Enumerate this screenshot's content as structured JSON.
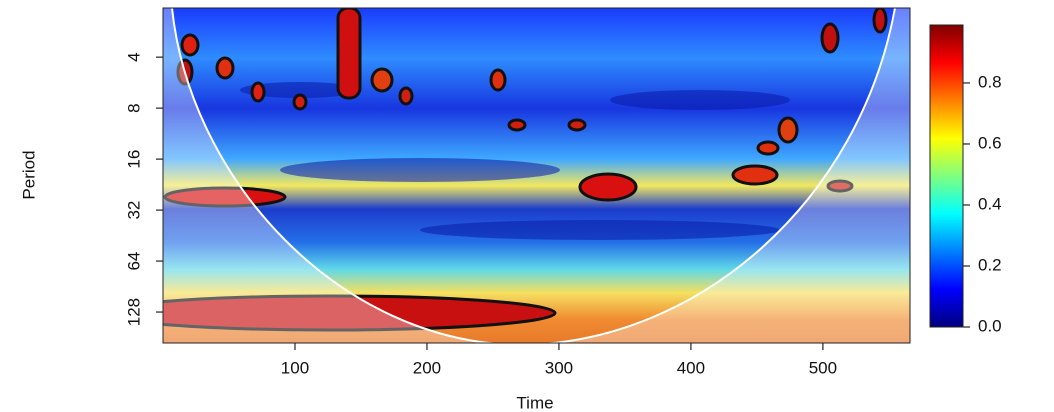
{
  "chart_data": {
    "type": "heatmap",
    "xlabel": "Time",
    "ylabel": "Period",
    "xlim": [
      0,
      566
    ],
    "xticks": [
      100,
      200,
      300,
      400,
      500
    ],
    "ylim": [
      2.05,
      195
    ],
    "yscale": "log2",
    "yinverted": true,
    "yticks": [
      4,
      8,
      16,
      32,
      64,
      128
    ],
    "colorbar": {
      "zlim": [
        0,
        0.99
      ],
      "ticks": [
        {
          "value": 0,
          "label": "0.0"
        },
        0.2,
        0.4,
        0.6,
        0.8
      ],
      "colors": [
        "#00007f",
        "#0000ff",
        "#007fff",
        "#00ffff",
        "#7fff7f",
        "#ffff00",
        "#ff7f00",
        "#ff0000",
        "#7f0000"
      ]
    }
  }
}
